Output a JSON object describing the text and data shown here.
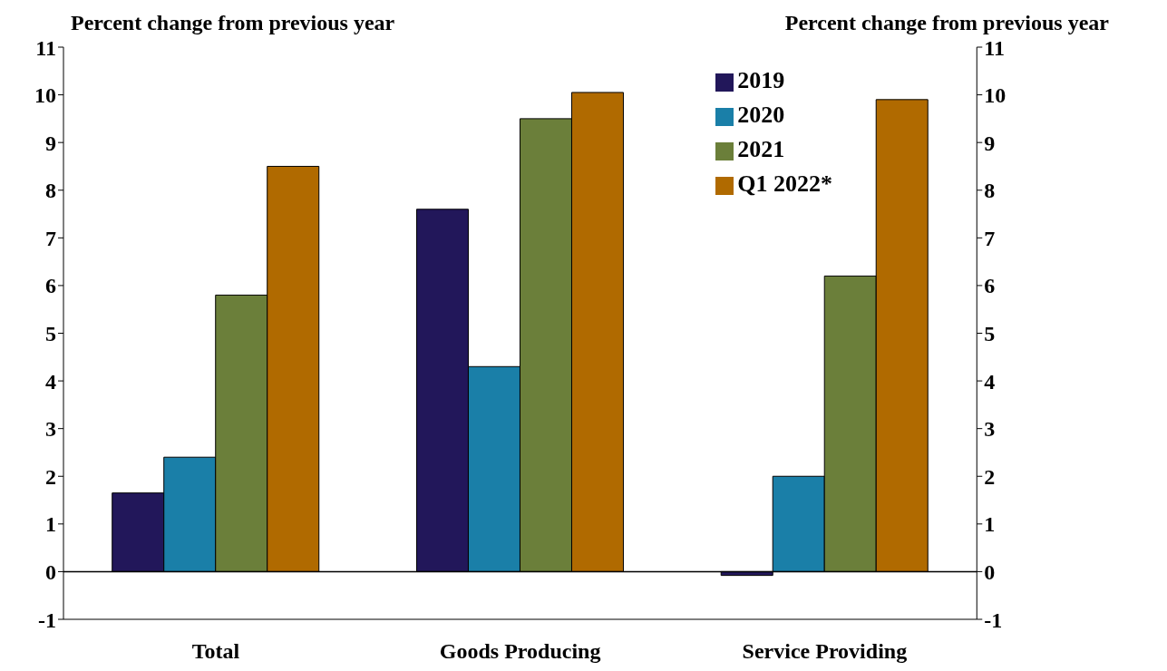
{
  "chart_data": {
    "type": "bar",
    "ylabel": "Percent change from previous year",
    "y2label": "Percent change from previous year",
    "categories": [
      "Total",
      "Goods Producing",
      "Service Providing"
    ],
    "series": [
      {
        "name": "2019",
        "color": "#22175a",
        "values": [
          1.65,
          7.6,
          -0.08
        ]
      },
      {
        "name": "2020",
        "color": "#1a7fa8",
        "values": [
          2.4,
          4.3,
          2.0
        ]
      },
      {
        "name": "2021",
        "color": "#6b7f3a",
        "values": [
          5.8,
          9.5,
          6.2
        ]
      },
      {
        "name": "Q1 2022*",
        "color": "#b06a00",
        "values": [
          8.5,
          10.05,
          9.9
        ]
      }
    ],
    "ylim": [
      -1,
      11
    ],
    "yticks": [
      -1,
      0,
      1,
      2,
      3,
      4,
      5,
      6,
      7,
      8,
      9,
      10,
      11
    ],
    "y2lim": [
      -1,
      11
    ],
    "y2ticks": [
      -1,
      0,
      1,
      2,
      3,
      4,
      5,
      6,
      7,
      8,
      9,
      10,
      11
    ],
    "ref_lines": [
      {
        "axis": "y",
        "value": 0,
        "color": "#000000"
      }
    ],
    "grid": false,
    "legend": "top right"
  }
}
